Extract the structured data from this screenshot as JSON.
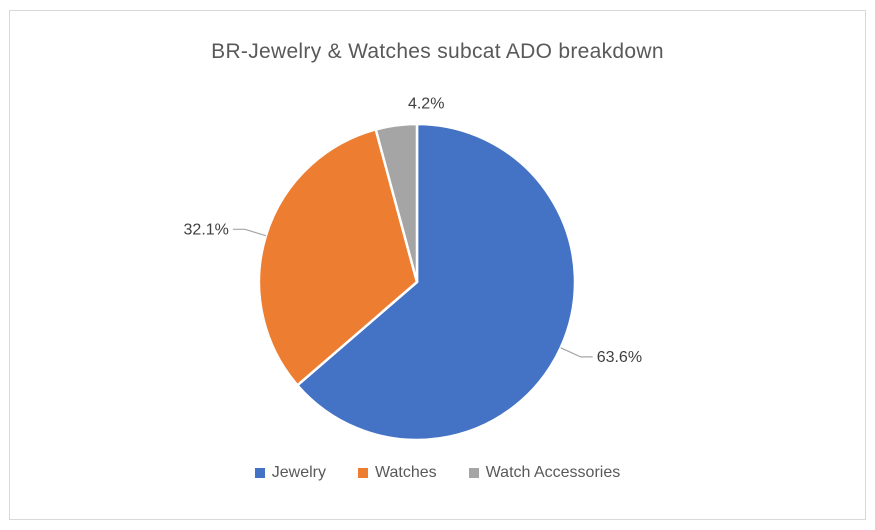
{
  "chart_data": {
    "type": "pie",
    "title": "BR-Jewelry & Watches subcat ADO breakdown",
    "labels": [
      "Jewelry",
      "Watches",
      "Watch Accessories"
    ],
    "values": [
      63.6,
      32.1,
      4.2
    ],
    "value_labels": [
      "63.6%",
      "32.1%",
      "4.2%"
    ],
    "colors": [
      "#4472C4",
      "#ED7D31",
      "#A5A5A5"
    ],
    "start_angle_deg": 0,
    "direction": "clockwise",
    "legend_position": "bottom",
    "grid": "off",
    "style": {
      "background": "#FFFFFF",
      "frame_border_color": "#D9D9D9",
      "title_color": "#595959",
      "label_color": "#404040",
      "legend_text_color": "#595959",
      "slice_border_color": "#FFFFFF",
      "leader_line_color": "#A6A6A6"
    }
  }
}
